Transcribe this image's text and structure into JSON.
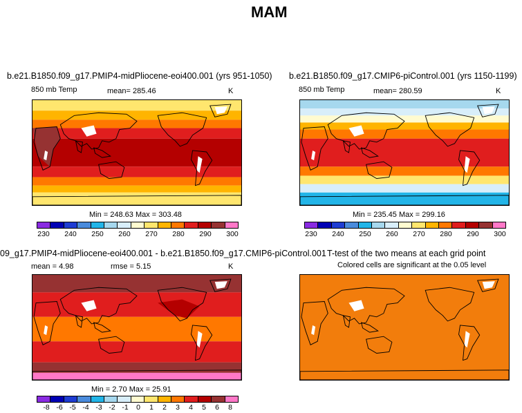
{
  "figure_title": "MAM",
  "colors": {
    "abs_palette": [
      "#8a2be2",
      "#0000b4",
      "#1e3cd2",
      "#4a8bdc",
      "#22b5e8",
      "#a6d8ee",
      "#d8eefa",
      "#fffbd0",
      "#ffe66e",
      "#ffb400",
      "#ff7800",
      "#e01e1e",
      "#b40000",
      "#963232",
      "#ff78c8"
    ],
    "diff_palette": [
      "#8a2be2",
      "#0000b4",
      "#1e3cd2",
      "#4a8bdc",
      "#22b5e8",
      "#a6d8ee",
      "#d8eefa",
      "#fffbd0",
      "#ffe66e",
      "#ffb400",
      "#ff7800",
      "#e01e1e",
      "#b40000",
      "#963232",
      "#ff78c8"
    ],
    "sig_color": "#f27d0c"
  },
  "chart_data": [
    {
      "type": "heatmap",
      "title": "b.e21.B1850.f09_g17.PMIP4-midPliocene-eoi400.001 (yrs 951-1050)",
      "variable": "850 mb Temp",
      "mean_label": "mean=",
      "mean": "285.46",
      "units": "K",
      "stats_text": "Min = 248.63 Max = 303.48",
      "min": 248.63,
      "max": 303.48,
      "colorbar_ticks": [
        "230",
        "240",
        "250",
        "260",
        "270",
        "280",
        "290",
        "300"
      ]
    },
    {
      "type": "heatmap",
      "title": "b.e21.B1850.f09_g17.CMIP6-piControl.001 (yrs 1150-1199)",
      "variable": "850 mb Temp",
      "mean_label": "mean=",
      "mean": "280.59",
      "units": "K",
      "stats_text": "Min = 235.45 Max = 299.16",
      "min": 235.45,
      "max": 299.16,
      "colorbar_ticks": [
        "230",
        "240",
        "250",
        "260",
        "270",
        "280",
        "290",
        "300"
      ]
    },
    {
      "type": "heatmap",
      "title": "09_g17.PMIP4-midPliocene-eoi400.001 - b.e21.B1850.f09_g17.CMIP6-piControl.001",
      "mean_label": "mean =",
      "mean": "4.98",
      "rmse_label": "rmse =",
      "rmse": "5.15",
      "units": "K",
      "stats_text": "Min =  2.70 Max =  25.91",
      "min": 2.7,
      "max": 25.91,
      "colorbar_ticks": [
        "-8",
        "-6",
        "-5",
        "-4",
        "-3",
        "-2",
        "-1",
        "0",
        "1",
        "2",
        "3",
        "4",
        "5",
        "6",
        "8"
      ]
    },
    {
      "type": "heatmap",
      "title": "T-test of the two means at each grid point",
      "subtitle": "Colored cells are significant at the 0.05 level"
    }
  ]
}
